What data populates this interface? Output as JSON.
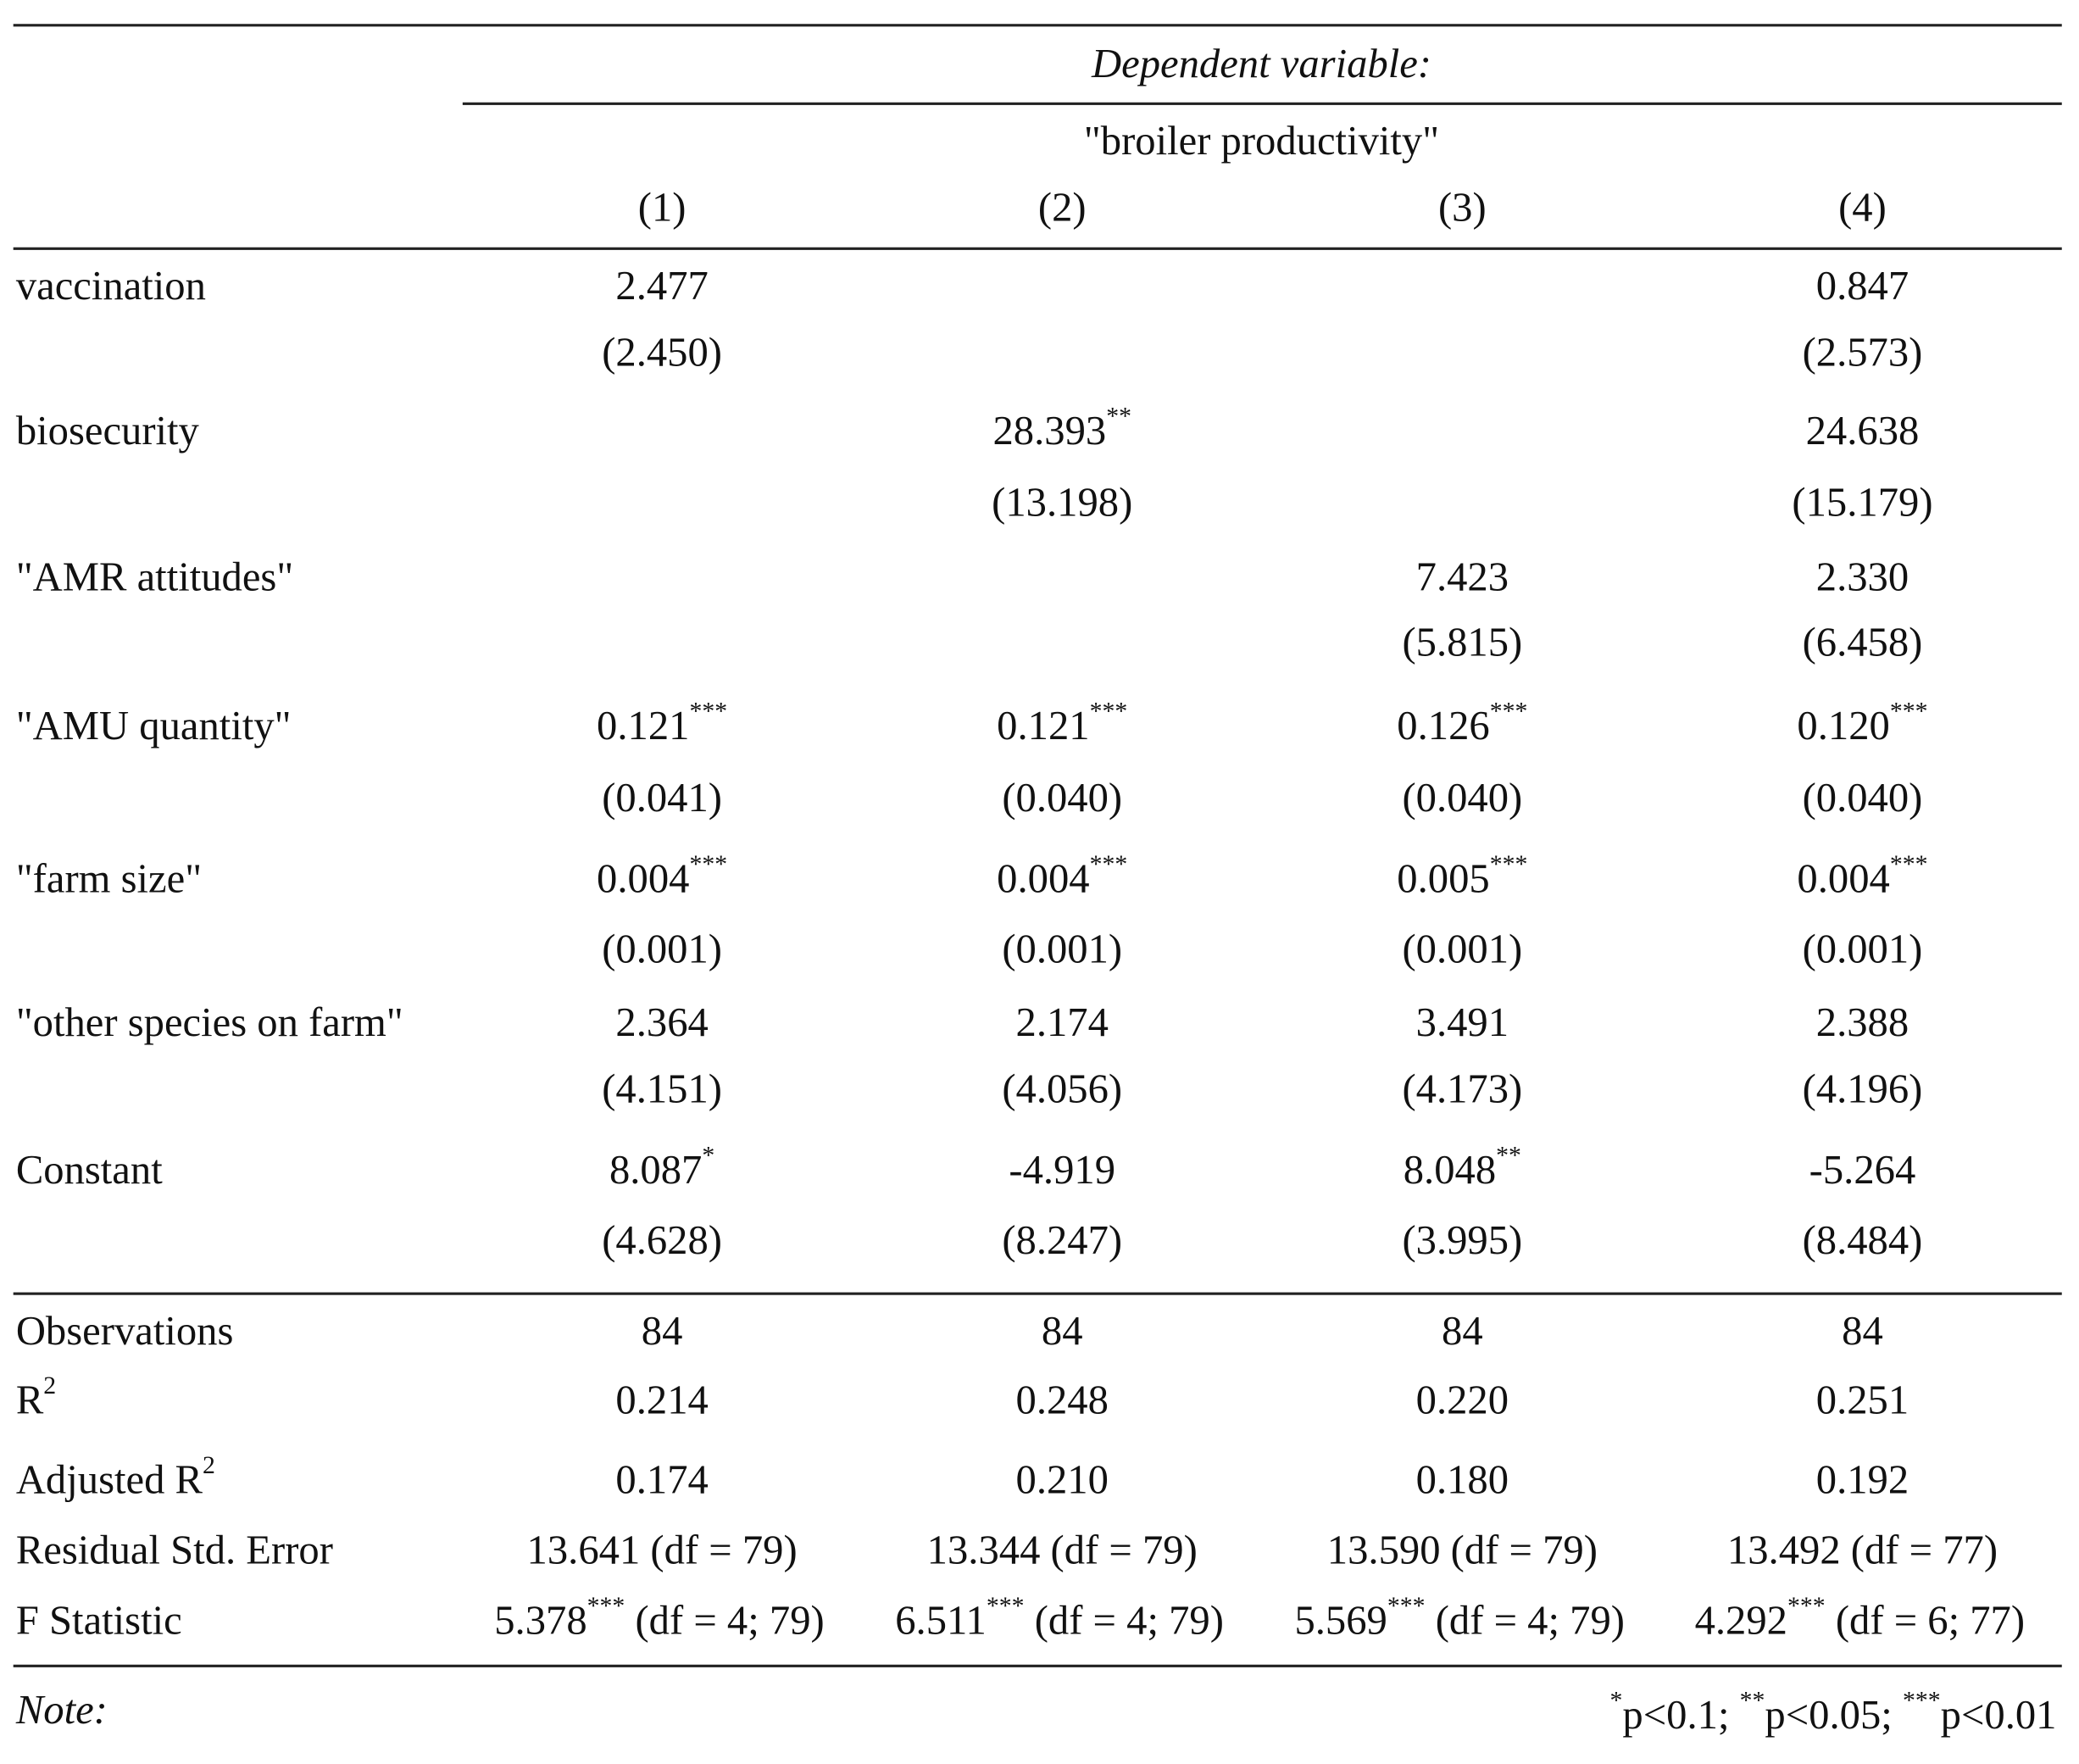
{
  "header": {
    "dependent_label": "Dependent variable:",
    "dependent_name": "\"broiler productivity\"",
    "columns": [
      "(1)",
      "(2)",
      "(3)",
      "(4)"
    ]
  },
  "rows": [
    {
      "label": "vaccination",
      "coef": [
        "2.477",
        "",
        "",
        "0.847"
      ],
      "stars": [
        "",
        "",
        "",
        ""
      ],
      "se": [
        "(2.450)",
        "",
        "",
        "(2.573)"
      ]
    },
    {
      "label": "biosecurity",
      "coef": [
        "",
        "28.393",
        "",
        "24.638"
      ],
      "stars": [
        "",
        "**",
        "",
        ""
      ],
      "se": [
        "",
        "(13.198)",
        "",
        "(15.179)"
      ]
    },
    {
      "label": "\"AMR attitudes\"",
      "coef": [
        "",
        "",
        "7.423",
        "2.330"
      ],
      "stars": [
        "",
        "",
        "",
        ""
      ],
      "se": [
        "",
        "",
        "(5.815)",
        "(6.458)"
      ]
    },
    {
      "label": "\"AMU quantity\"",
      "coef": [
        "0.121",
        "0.121",
        "0.126",
        "0.120"
      ],
      "stars": [
        "***",
        "***",
        "***",
        "***"
      ],
      "se": [
        "(0.041)",
        "(0.040)",
        "(0.040)",
        "(0.040)"
      ]
    },
    {
      "label": "\"farm size\"",
      "coef": [
        "0.004",
        "0.004",
        "0.005",
        "0.004"
      ],
      "stars": [
        "***",
        "***",
        "***",
        "***"
      ],
      "se": [
        "(0.001)",
        "(0.001)",
        "(0.001)",
        "(0.001)"
      ]
    },
    {
      "label": "\"other species on farm\"",
      "coef": [
        "2.364",
        "2.174",
        "3.491",
        "2.388"
      ],
      "stars": [
        "",
        "",
        "",
        ""
      ],
      "se": [
        "(4.151)",
        "(4.056)",
        "(4.173)",
        "(4.196)"
      ]
    },
    {
      "label": "Constant",
      "coef": [
        "8.087",
        "-4.919",
        "8.048",
        "-5.264"
      ],
      "stars": [
        "*",
        "",
        "**",
        ""
      ],
      "se": [
        "(4.628)",
        "(8.247)",
        "(3.995)",
        "(8.484)"
      ]
    }
  ],
  "stats": {
    "observations": {
      "label": "Observations",
      "values": [
        "84",
        "84",
        "84",
        "84"
      ]
    },
    "r2": {
      "label": "R",
      "sup": "2",
      "values": [
        "0.214",
        "0.248",
        "0.220",
        "0.251"
      ]
    },
    "adj_r2": {
      "label": "Adjusted R",
      "sup": "2",
      "values": [
        "0.174",
        "0.210",
        "0.180",
        "0.192"
      ]
    },
    "rse": {
      "label": "Residual Std. Error",
      "values": [
        "13.641 (df = 79)",
        "13.344 (df = 79)",
        "13.590 (df = 79)",
        "13.492 (df = 77)"
      ]
    },
    "fstat": {
      "label": "F Statistic",
      "values": [
        {
          "value": "5.378",
          "stars": "***",
          "df": " (df = 4; 79)"
        },
        {
          "value": "6.511",
          "stars": "***",
          "df": " (df = 4; 79)"
        },
        {
          "value": "5.569",
          "stars": "***",
          "df": " (df = 4; 79)"
        },
        {
          "value": "4.292",
          "stars": "***",
          "df": " (df = 6; 77)"
        }
      ]
    }
  },
  "note": {
    "label": "Note:",
    "s1": "*",
    "t1": "p<0.1; ",
    "s2": "**",
    "t2": "p<0.05; ",
    "s3": "***",
    "t3": "p<0.01"
  }
}
